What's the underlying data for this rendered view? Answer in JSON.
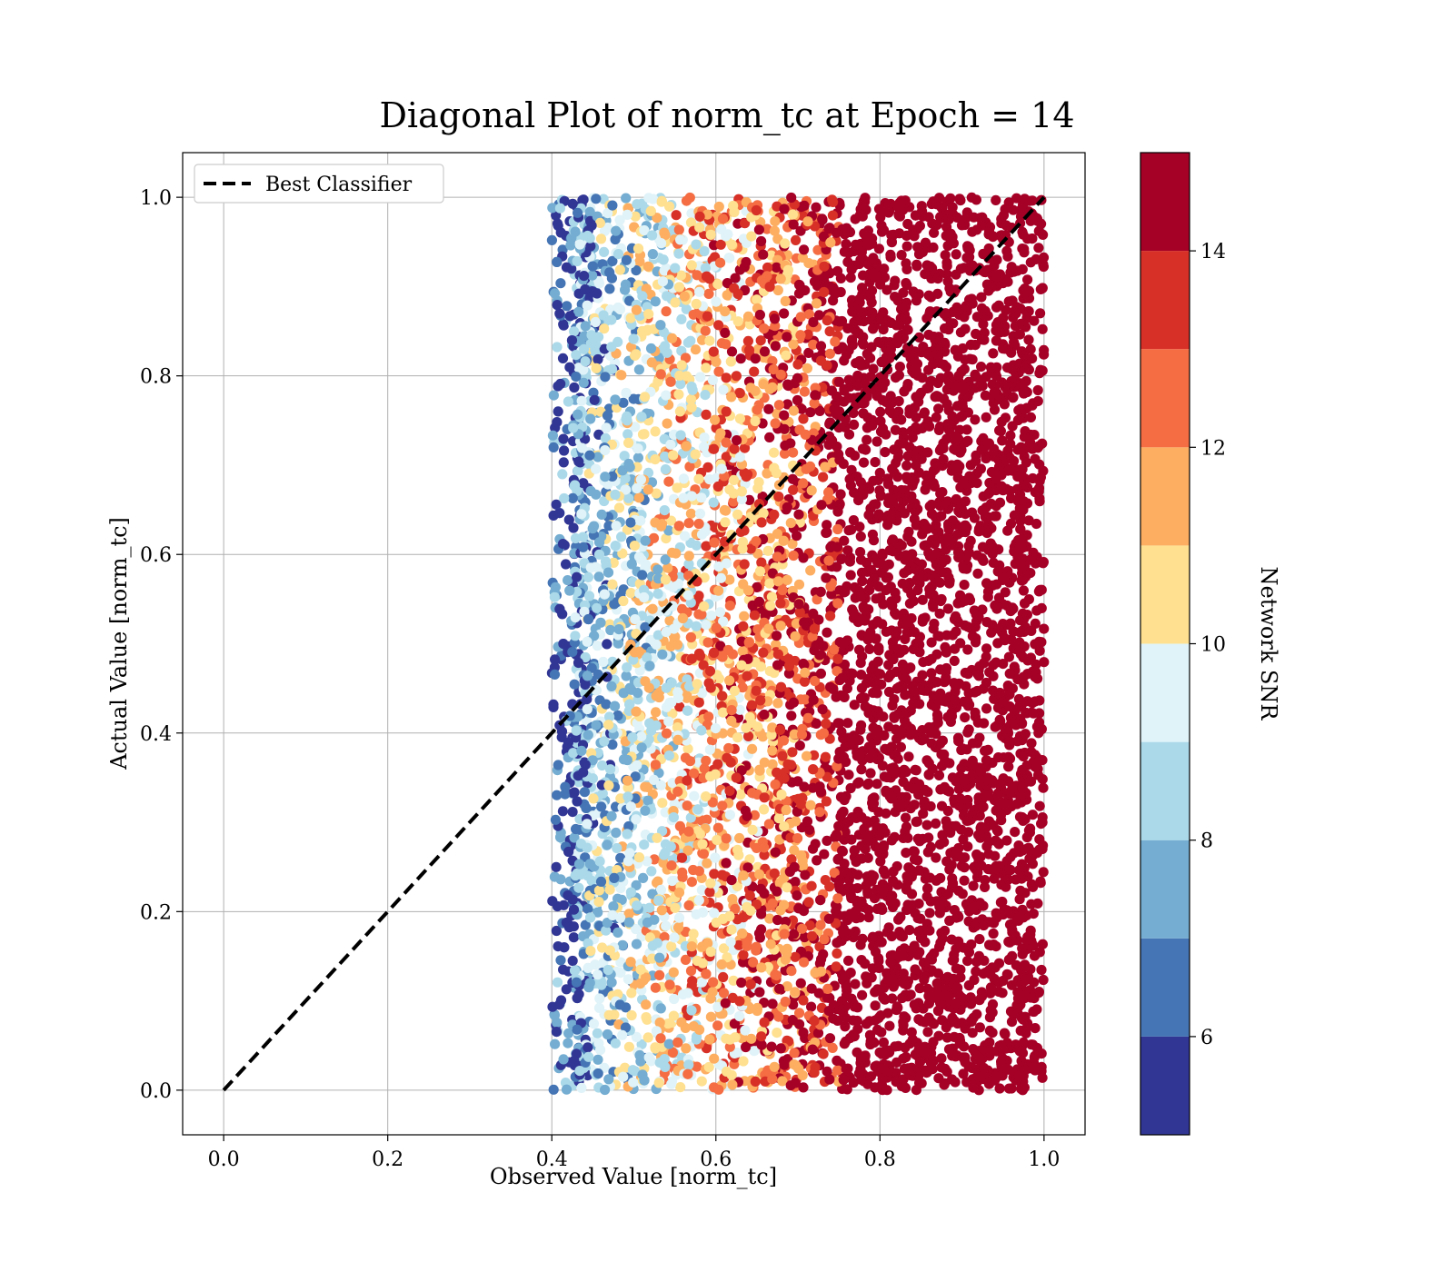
{
  "chart_data": {
    "type": "scatter",
    "title": "Diagonal Plot of norm_tc at Epoch = 14",
    "xlabel": "Observed Value [norm_tc]",
    "ylabel": "Actual Value [norm_tc]",
    "xlim": [
      -0.05,
      1.05
    ],
    "ylim": [
      -0.05,
      1.05
    ],
    "xticks": [
      0.0,
      0.2,
      0.4,
      0.6,
      0.8,
      1.0
    ],
    "yticks": [
      0.0,
      0.2,
      0.4,
      0.6,
      0.8,
      1.0
    ],
    "xtick_labels": [
      "0.0",
      "0.2",
      "0.4",
      "0.6",
      "0.8",
      "1.0"
    ],
    "ytick_labels": [
      "0.0",
      "0.2",
      "0.4",
      "0.6",
      "0.8",
      "1.0"
    ],
    "grid": true,
    "legend": {
      "placement": "top-left",
      "entries": [
        {
          "label": "Best Classifier",
          "style": "dashed",
          "color": "#000000"
        }
      ]
    },
    "reference_line": {
      "label": "Best Classifier",
      "x": [
        0.0,
        1.0
      ],
      "y": [
        0.0,
        1.0
      ]
    },
    "scatter_extent": {
      "x_min": 0.4,
      "x_max": 1.0,
      "y_min": 0.0,
      "y_max": 1.0
    },
    "snr_vs_observed": [
      {
        "observed": 0.42,
        "snr": 6.0
      },
      {
        "observed": 0.45,
        "snr": 8.0
      },
      {
        "observed": 0.5,
        "snr": 9.0
      },
      {
        "observed": 0.55,
        "snr": 10.5
      },
      {
        "observed": 0.6,
        "snr": 11.5
      },
      {
        "observed": 0.65,
        "snr": 12.5
      },
      {
        "observed": 0.7,
        "snr": 13.5
      },
      {
        "observed": 0.75,
        "snr": 14.5
      },
      {
        "observed": 1.0,
        "snr": 15.0
      }
    ],
    "colorbar": {
      "label": "Network SNR",
      "range": [
        5,
        15
      ],
      "ticks": [
        6,
        8,
        10,
        12,
        14
      ],
      "tick_labels": [
        "6",
        "8",
        "10",
        "12",
        "14"
      ],
      "levels": [
        5,
        6,
        7,
        8,
        9,
        10,
        11,
        12,
        13,
        14,
        15
      ],
      "colors": [
        "#313695",
        "#4575b4",
        "#74add1",
        "#abd9e9",
        "#e0f3f8",
        "#fee090",
        "#fdae61",
        "#f46d43",
        "#d73027",
        "#a50026"
      ]
    }
  }
}
